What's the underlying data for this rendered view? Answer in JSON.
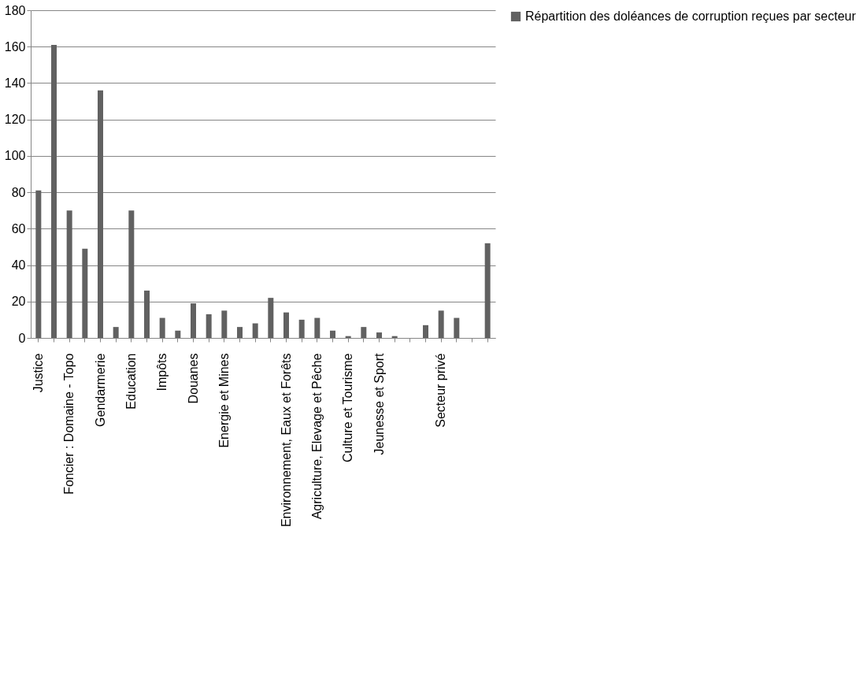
{
  "chart_data": {
    "type": "bar",
    "categories": [
      "Justice",
      null,
      "Foncier : Domaine - Topo",
      null,
      "Gendarmerie",
      null,
      "Education",
      null,
      "Impôts",
      null,
      "Douanes",
      null,
      "Energie et Mines",
      null,
      null,
      null,
      "Environnement,  Eaux et Forêts",
      null,
      "Agriculture,  Elevage et Pêche",
      null,
      "Culture et Tourisme",
      null,
      "Jeunesse et Sport",
      null,
      null,
      null,
      "Secteur privé",
      null,
      null,
      null
    ],
    "series": [
      {
        "name": "Répartition des doléances de corruption reçues par secteur",
        "color": "#616161",
        "values": [
          81,
          161,
          70,
          49,
          136,
          6,
          70,
          26,
          11,
          4,
          19,
          13,
          15,
          6,
          8,
          22,
          14,
          10,
          11,
          4,
          1,
          6,
          3,
          1,
          0,
          7,
          15,
          11,
          0,
          52
        ]
      }
    ],
    "ylim": [
      0,
      180
    ],
    "yticks": [
      0,
      20,
      40,
      60,
      80,
      100,
      120,
      140,
      160,
      180
    ],
    "grid": "y",
    "legend": "right"
  }
}
